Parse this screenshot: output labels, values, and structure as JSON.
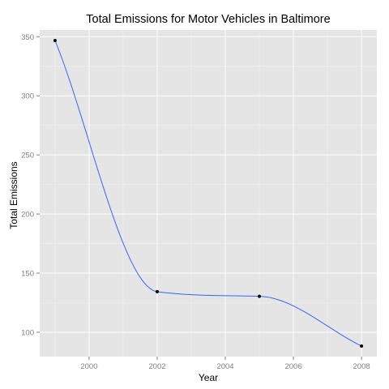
{
  "chart_data": {
    "type": "line",
    "title": "Total Emissions for Motor Vehicles in Baltimore",
    "xlabel": "Year",
    "ylabel": "Total Emissions",
    "x": [
      1999,
      2002,
      2005,
      2008
    ],
    "series": [
      {
        "values": [
          346.8,
          134.3,
          130.4,
          88.3
        ]
      }
    ],
    "smoothed": true,
    "xlim": [
      1998.55,
      2008.45
    ],
    "ylim": [
      79.4,
      355.7
    ],
    "x_ticks": [
      2000,
      2002,
      2004,
      2006,
      2008
    ],
    "y_ticks": [
      100,
      150,
      200,
      250,
      300,
      350
    ],
    "grid": true,
    "legend": "none",
    "colors": {
      "panel_background": "#e5e5e5",
      "line": "#3366ff",
      "points": "#000000",
      "grid_major": "#ffffff",
      "grid_minor": "#f2f2f2",
      "tick_text": "#7f7f7f"
    }
  }
}
